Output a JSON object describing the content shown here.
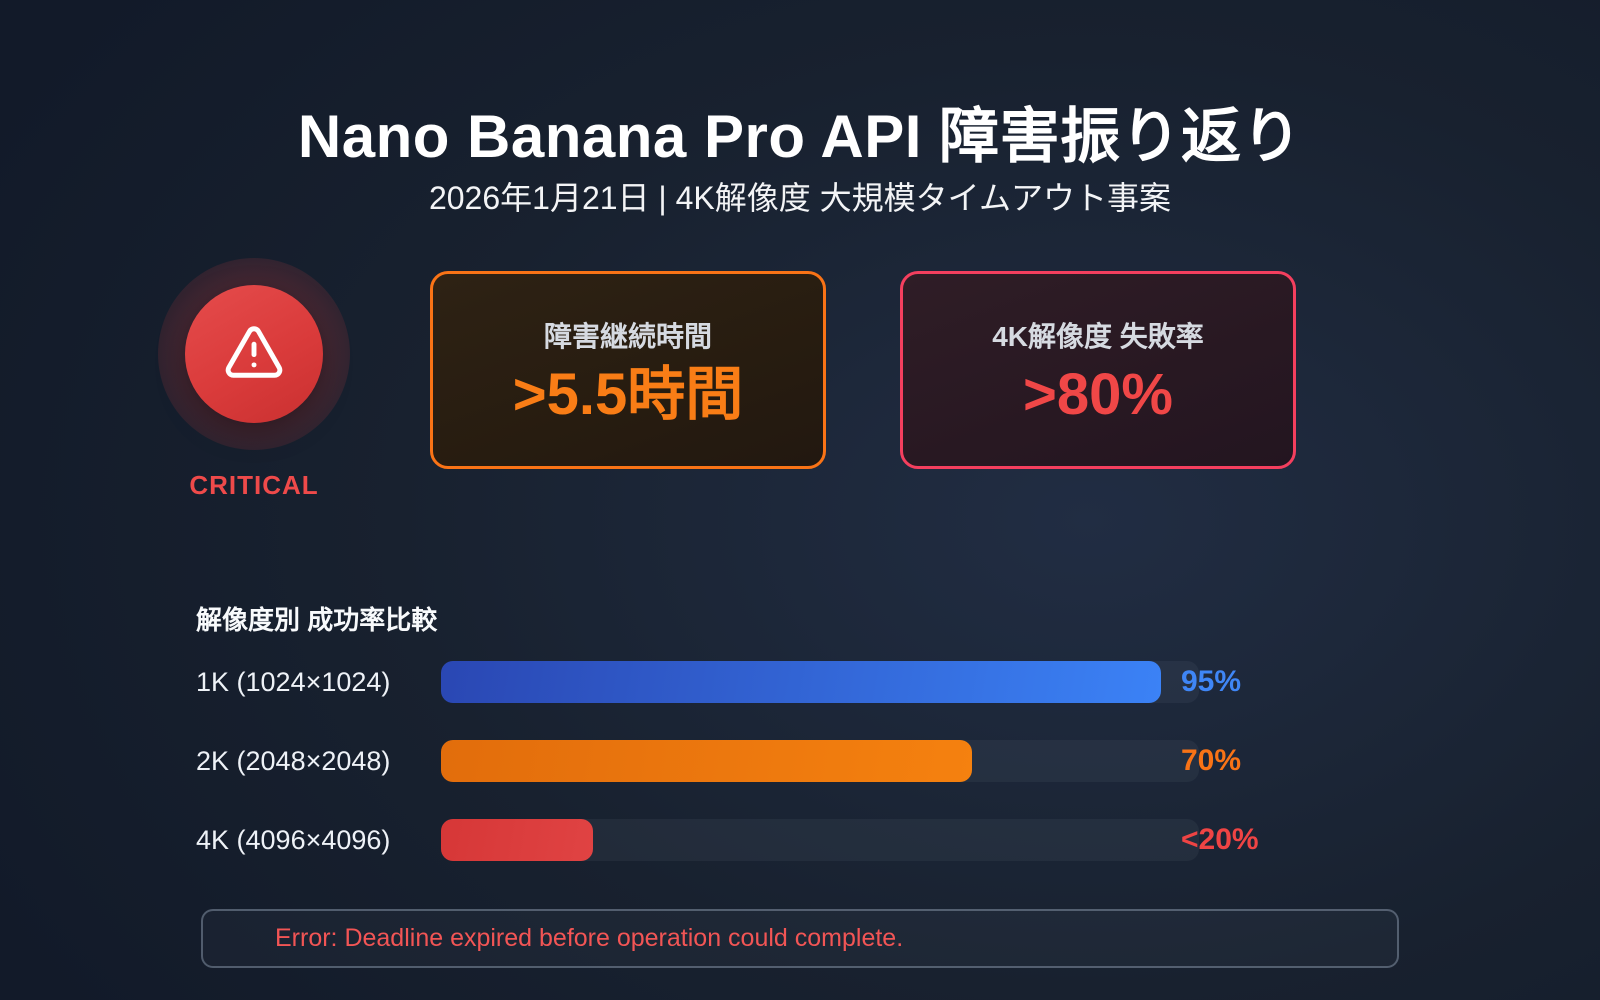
{
  "header": {
    "title": "Nano Banana Pro API 障害振り返り",
    "subtitle": "2026年1月21日 | 4K解像度 大規模タイムアウト事案"
  },
  "badge": {
    "label": "CRITICAL",
    "icon": "alert-triangle-icon",
    "color": "#ef4a4a",
    "circle_color": "#da3b3b"
  },
  "stat_cards": [
    {
      "label": "障害継続時間",
      "value": ">5.5時間",
      "accent_color": "#f97316"
    },
    {
      "label": "4K解像度 失敗率",
      "value": ">80%",
      "accent_color": "#f43f5e"
    }
  ],
  "chart_data": {
    "type": "bar",
    "orientation": "horizontal",
    "title": "解像度別 成功率比較",
    "categories": [
      "1K (1024×1024)",
      "2K (2048×2048)",
      "4K (4096×4096)"
    ],
    "values": [
      95,
      70,
      20
    ],
    "value_labels": [
      "95%",
      "70%",
      "<20%"
    ],
    "xlabel": "",
    "ylabel": "",
    "unit": "%",
    "xlim": [
      0,
      100
    ],
    "grid": false,
    "legend": false,
    "bar_colors": [
      {
        "from": "#2a47b3",
        "to": "#3b82f6"
      },
      {
        "from": "#e26d0c",
        "to": "#f5810f"
      },
      {
        "from": "#d63737",
        "to": "#e04343"
      }
    ],
    "value_colors": [
      "#3f86f6",
      "#f97316",
      "#ef4444"
    ]
  },
  "error_banner": {
    "message": "Error: Deadline expired before operation could complete.",
    "text_color": "#f25555"
  },
  "page_colors": {
    "background_dark": "#121a29",
    "background_light": "#212d43"
  }
}
